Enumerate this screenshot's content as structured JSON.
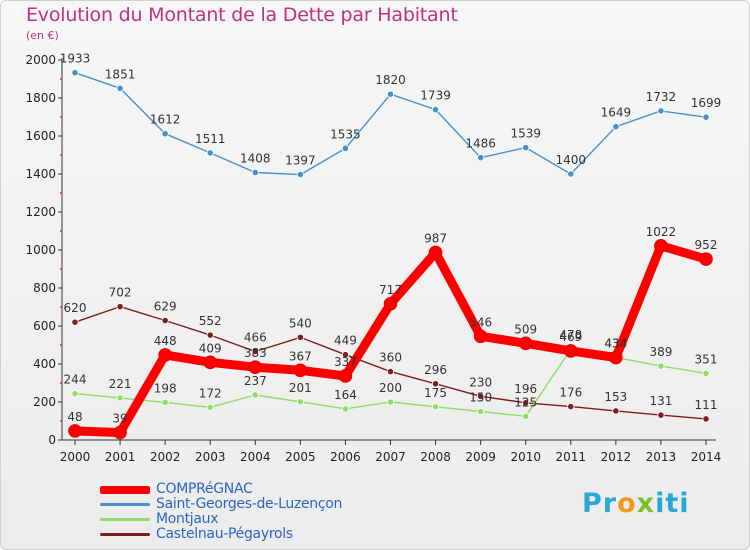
{
  "title": "Evolution du Montant de la Dette par Habitant",
  "subtitle": "(en €)",
  "logo_text": "Proxiti",
  "chart_data": {
    "type": "line",
    "x": [
      "2000",
      "2001",
      "2002",
      "2003",
      "2004",
      "2005",
      "2006",
      "2007",
      "2008",
      "2009",
      "2010",
      "2011",
      "2012",
      "2013",
      "2014"
    ],
    "ylim": [
      0,
      2000
    ],
    "yticks": [
      0,
      200,
      400,
      600,
      800,
      1000,
      1200,
      1400,
      1600,
      1800,
      2000
    ],
    "grid": false,
    "legend_position": "bottom-left",
    "series": [
      {
        "name": "COMPRéGNAC",
        "color": "#ff0000",
        "values": [
          48,
          39,
          448,
          409,
          383,
          367,
          337,
          717,
          987,
          546,
          509,
          469,
          434,
          1022,
          952
        ]
      },
      {
        "name": "Saint-Georges-de-Luzençon",
        "color": "#4a8fcc",
        "values": [
          1933,
          1851,
          1612,
          1511,
          1408,
          1397,
          1535,
          1820,
          1739,
          1486,
          1539,
          1400,
          1649,
          1732,
          1699
        ]
      },
      {
        "name": "Montjaux",
        "color": "#90dc6a",
        "values": [
          244,
          221,
          198,
          172,
          237,
          201,
          164,
          200,
          175,
          150,
          125,
          478,
          434,
          389,
          351
        ]
      },
      {
        "name": "Castelnau-Pégayrols",
        "color": "#7a1e1e",
        "values": [
          620,
          702,
          629,
          552,
          466,
          540,
          449,
          360,
          296,
          230,
          196,
          176,
          153,
          131,
          111
        ]
      }
    ]
  }
}
